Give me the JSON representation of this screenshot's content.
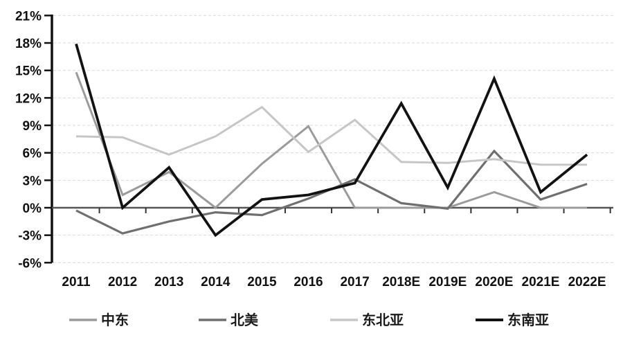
{
  "chart": {
    "background": "#ffffff"
  },
  "chart_data": {
    "type": "line",
    "title": "",
    "xlabel": "",
    "ylabel": "",
    "categories": [
      "2011",
      "2012",
      "2013",
      "2014",
      "2015",
      "2016",
      "2017",
      "2018E",
      "2019E",
      "2020E",
      "2021E",
      "2022E"
    ],
    "series": [
      {
        "name": "中东",
        "slug": "middle-east",
        "color": "#9b9b9b",
        "width": 3,
        "values": [
          14.8,
          1.4,
          3.9,
          0,
          4.8,
          8.9,
          0,
          0,
          0,
          1.7,
          0,
          0
        ]
      },
      {
        "name": "北美",
        "slug": "north-america",
        "color": "#6f6f6f",
        "width": 3.2,
        "values": [
          -0.3,
          -2.8,
          -1.5,
          -0.5,
          -0.8,
          1.0,
          3.1,
          0.5,
          -0.1,
          6.2,
          0.9,
          2.6
        ]
      },
      {
        "name": "东北亚",
        "slug": "northeast-asia",
        "color": "#c6c6c6",
        "width": 3,
        "values": [
          7.8,
          7.7,
          5.8,
          7.8,
          11.0,
          6.1,
          9.6,
          5.0,
          4.9,
          5.3,
          4.7,
          4.7
        ]
      },
      {
        "name": "东南亚",
        "slug": "southeast-asia",
        "color": "#121212",
        "width": 3.8,
        "values": [
          17.9,
          0,
          4.4,
          -3.0,
          0.9,
          1.4,
          2.7,
          11.4,
          2.2,
          14.1,
          1.7,
          5.8
        ]
      }
    ],
    "ylim": [
      -6,
      21
    ],
    "y_ticks": [
      21,
      18,
      15,
      12,
      9,
      6,
      3,
      0,
      -3,
      -6
    ],
    "y_tick_unit": "%",
    "grid": "horizontal-dashed",
    "gridline_color": "#d9d9d9",
    "axis_color": "#111111",
    "baseline_color": "#555555",
    "tick_color": "#333333",
    "legend_position": "bottom"
  }
}
